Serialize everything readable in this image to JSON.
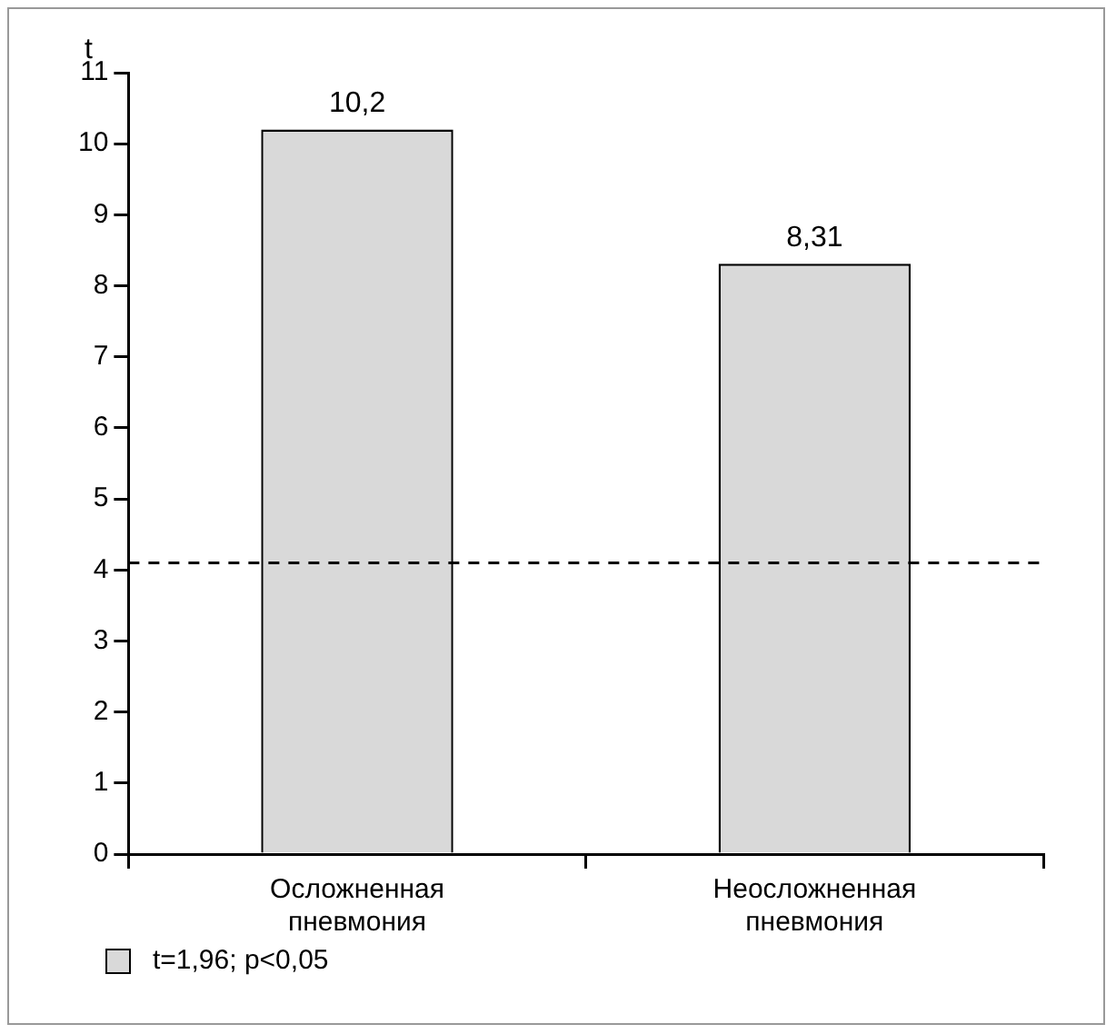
{
  "chart_data": {
    "type": "bar",
    "ylabel": "t",
    "categories": [
      "Осложненная пневмония",
      "Неосложненная пневмония"
    ],
    "series": [
      {
        "name": "t=1,96; p<0,05",
        "color": "#d9d9d9",
        "values": [
          10.2,
          8.31
        ],
        "value_labels": [
          "10,2",
          "8,31"
        ]
      }
    ],
    "ylim": [
      0,
      11
    ],
    "yticks": [
      0,
      1,
      2,
      3,
      4,
      5,
      6,
      7,
      8,
      9,
      10,
      11
    ],
    "grid": false,
    "legend": "bottom left",
    "ref_lines": [
      {
        "axis": "y",
        "value": 4.1,
        "line_style": "dashed",
        "color": "#000000"
      }
    ]
  }
}
